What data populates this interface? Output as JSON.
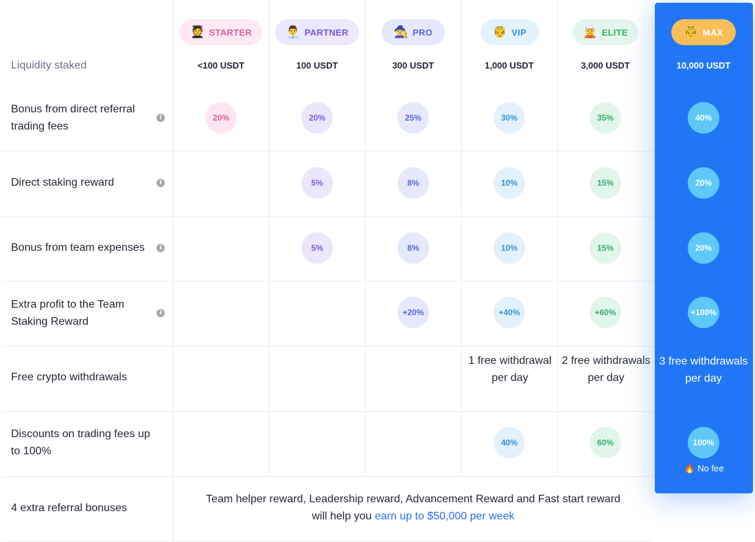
{
  "tiers": [
    {
      "name": "STARTER",
      "emoji": "🧑‍🎓",
      "amount": "<100 USDT",
      "pill_bg": "#fde8f3",
      "pill_fg": "#e0609f",
      "circle_bg": "#fde6f2",
      "circle_fg": "#d9609a"
    },
    {
      "name": "PARTNER",
      "emoji": "👨‍💼",
      "amount": "100 USDT",
      "pill_bg": "#ece8fd",
      "pill_fg": "#7a55e0",
      "circle_bg": "#ece6fc",
      "circle_fg": "#7a5ad8"
    },
    {
      "name": "PRO",
      "emoji": "🧙",
      "amount": "300 USDT",
      "pill_bg": "#e6e9fd",
      "pill_fg": "#5566e6",
      "circle_bg": "#e6e8fc",
      "circle_fg": "#5566d8"
    },
    {
      "name": "VIP",
      "emoji": "🤴",
      "amount": "1,000 USDT",
      "pill_bg": "#e3f2fd",
      "pill_fg": "#2c9bdf",
      "circle_bg": "#e3f1fc",
      "circle_fg": "#2c95d8"
    },
    {
      "name": "ELITE",
      "emoji": "🧝",
      "amount": "3,000 USDT",
      "pill_bg": "#e4f6ec",
      "pill_fg": "#33b56c",
      "circle_bg": "#e2f5ea",
      "circle_fg": "#2fb069"
    },
    {
      "name": "MAX",
      "emoji": "🤴",
      "amount": "10,000 USDT",
      "pill_bg": "#f8be5a",
      "pill_fg": "#ffffff"
    }
  ],
  "rows": {
    "liquidity": {
      "label": "Liquidity staked"
    },
    "bonus_direct": {
      "label": "Bonus from direct referral trading fees",
      "values": [
        "20%",
        "20%",
        "25%",
        "30%",
        "35%",
        "40%"
      ]
    },
    "direct_staking": {
      "label": "Direct staking reward",
      "values": [
        "",
        "5%",
        "8%",
        "10%",
        "15%",
        "20%"
      ]
    },
    "team_expenses": {
      "label": "Bonus from team expenses",
      "values": [
        "",
        "5%",
        "8%",
        "10%",
        "15%",
        "20%"
      ]
    },
    "extra_profit": {
      "label": "Extra profit to the Team Staking Reward",
      "values": [
        "",
        "",
        "+20%",
        "+40%",
        "+60%",
        "+100%"
      ]
    },
    "withdrawals": {
      "label": "Free crypto withdrawals",
      "values": [
        "",
        "",
        "",
        "1 free withdrawal per day",
        "2 free withdrawals per day",
        "3 free withdrawals per day"
      ]
    },
    "discounts": {
      "label": "Discounts on trading fees up to 100%",
      "values": [
        "",
        "",
        "",
        "40%",
        "60%",
        "100%"
      ],
      "max_note": "No fee",
      "max_note_icon": "🔥"
    },
    "extra_bonuses": {
      "label": "4 extra referral bonuses",
      "text_line1": "Team helper reward, Leadership reward, Advancement Reward and Fast start reward",
      "text_line2_prefix": "will help you ",
      "text_line2_highlight": "earn up to $50,000 per week"
    }
  },
  "info_icon": "i"
}
